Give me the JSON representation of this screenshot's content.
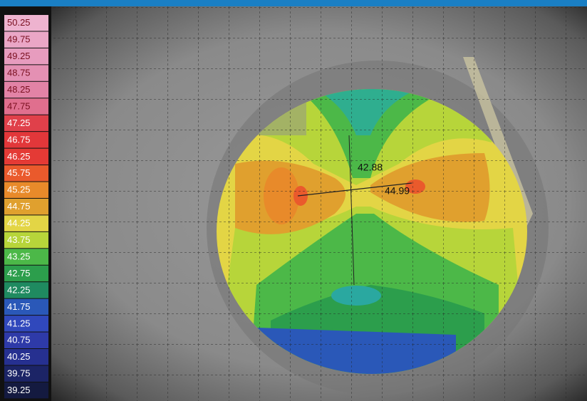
{
  "scale": {
    "levels": [
      {
        "label": "50.25",
        "color": "#eeb3cf"
      },
      {
        "label": "49.75",
        "color": "#eaa6c6"
      },
      {
        "label": "49.25",
        "color": "#e79cbe"
      },
      {
        "label": "48.75",
        "color": "#e490b3"
      },
      {
        "label": "48.25",
        "color": "#e283a6"
      },
      {
        "label": "47.75",
        "color": "#e06f8e"
      },
      {
        "label": "47.25",
        "color": "#e0404a"
      },
      {
        "label": "46.75",
        "color": "#e2373a"
      },
      {
        "label": "46.25",
        "color": "#e43a35"
      },
      {
        "label": "45.75",
        "color": "#ea5a2c"
      },
      {
        "label": "45.25",
        "color": "#e88a2a"
      },
      {
        "label": "44.75",
        "color": "#e0a02e"
      },
      {
        "label": "44.25",
        "color": "#e3d545"
      },
      {
        "label": "43.75",
        "color": "#b7d53a"
      },
      {
        "label": "43.25",
        "color": "#4cb848"
      },
      {
        "label": "42.75",
        "color": "#2c9e4c"
      },
      {
        "label": "42.25",
        "color": "#1f8a60"
      },
      {
        "label": "41.75",
        "color": "#2a58b8"
      },
      {
        "label": "41.25",
        "color": "#3048bc"
      },
      {
        "label": "40.75",
        "color": "#2e3aa8"
      },
      {
        "label": "40.25",
        "color": "#263090"
      },
      {
        "label": "39.75",
        "color": "#1c2466"
      },
      {
        "label": "39.25",
        "color": "#141a40"
      }
    ]
  },
  "annotations": [
    "42.88",
    "44.99"
  ]
}
